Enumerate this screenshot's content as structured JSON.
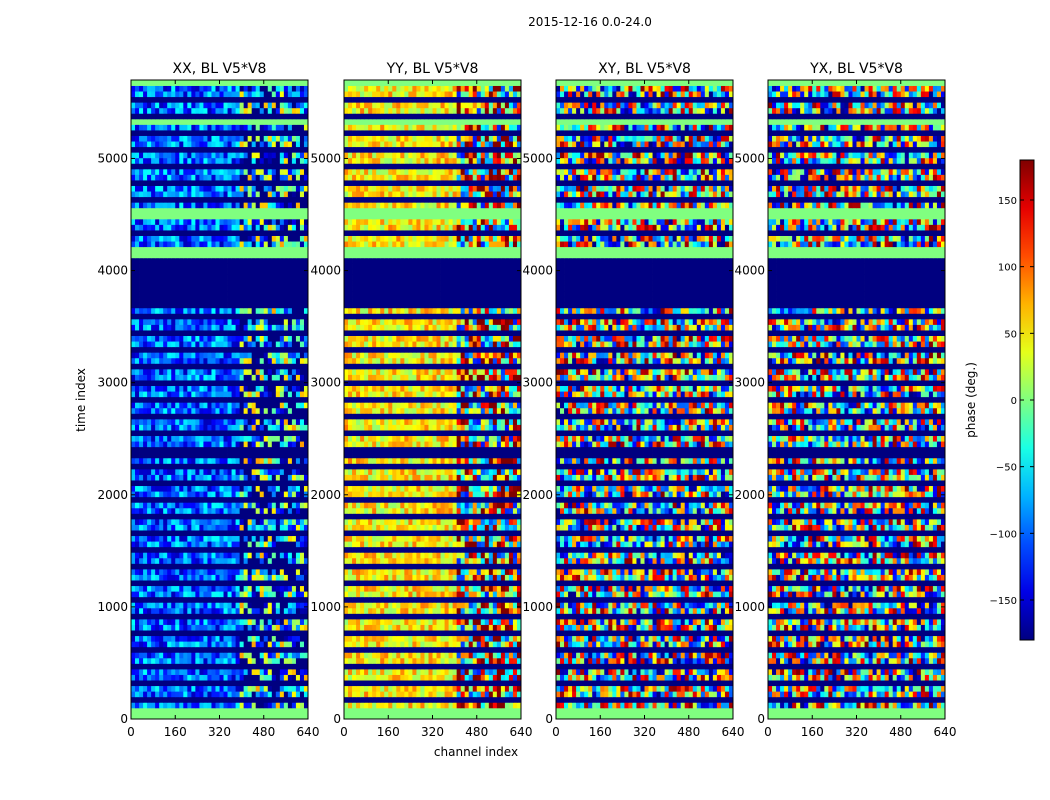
{
  "chart_data": {
    "type": "heatmap",
    "suptitle": "2015-12-16 0.0-24.0",
    "xlabel": "channel index",
    "ylabel": "time index",
    "xlim": [
      0,
      640
    ],
    "ylim": [
      0,
      5700
    ],
    "xticks": [
      0,
      160,
      320,
      480,
      640
    ],
    "yticks": [
      0,
      1000,
      2000,
      3000,
      4000,
      5000
    ],
    "colorbar": {
      "label": "phase (deg.)",
      "range": [
        -180,
        180
      ],
      "ticks": [
        -150,
        -100,
        -50,
        0,
        50,
        100,
        150
      ],
      "tick_labels": [
        "−150",
        "−100",
        "−50",
        "0",
        "50",
        "100",
        "150"
      ],
      "colormap": "jet"
    },
    "flagged_bands": [
      {
        "from": 3670,
        "to": 4120,
        "value": -180
      },
      {
        "from": 2320,
        "to": 2420,
        "value": -180
      }
    ],
    "constant_bands": [
      {
        "from": 0,
        "to": 90,
        "value": 0
      },
      {
        "from": 4130,
        "to": 4200,
        "value": 0
      },
      {
        "from": 4460,
        "to": 4560,
        "value": 0
      },
      {
        "from": 5300,
        "to": 5350,
        "value": 0
      },
      {
        "from": 5650,
        "to": 5700,
        "value": 0
      }
    ],
    "panels": [
      {
        "title": "XX, BL V5*V8",
        "base_phase": -100,
        "spread": 60,
        "change_channel": 390
      },
      {
        "title": "YY, BL V5*V8",
        "base_phase": 50,
        "spread": 45,
        "change_channel": 400
      },
      {
        "title": "XY, BL V5*V8",
        "base_phase": 0,
        "spread": 180,
        "change_channel": 400
      },
      {
        "title": "YX, BL V5*V8",
        "base_phase": 0,
        "spread": 180,
        "change_channel": 400
      }
    ]
  }
}
